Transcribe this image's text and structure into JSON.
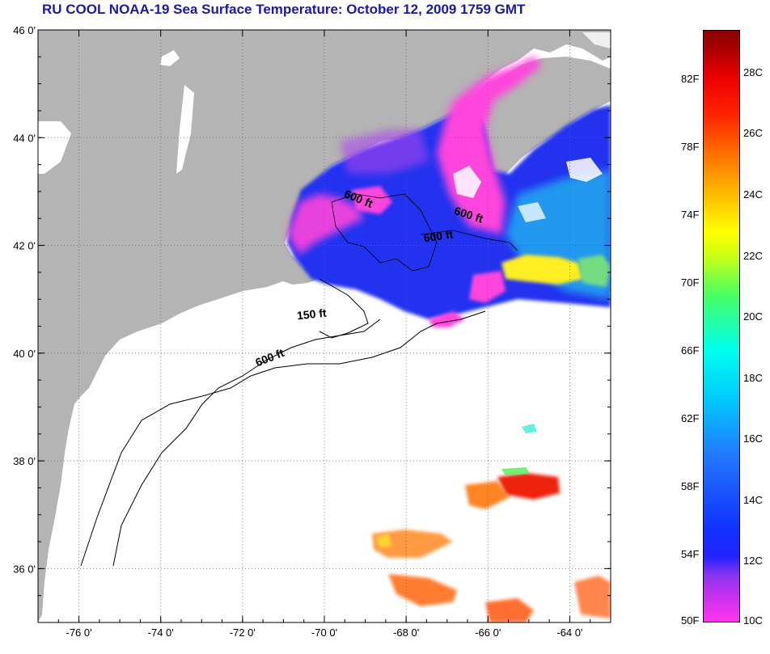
{
  "title": "RU COOL  NOAA-19  Sea Surface Temperature:  October 12, 2009 1759 GMT",
  "map": {
    "lat_ticks": [
      {
        "value": 46,
        "label": "46 0'"
      },
      {
        "value": 44,
        "label": "44 0'"
      },
      {
        "value": 42,
        "label": "42 0'"
      },
      {
        "value": 40,
        "label": "40 0'"
      },
      {
        "value": 38,
        "label": "38 0'"
      },
      {
        "value": 36,
        "label": "36 0'"
      }
    ],
    "lon_ticks": [
      {
        "value": -76,
        "label": "-76 0'"
      },
      {
        "value": -74,
        "label": "-74 0'"
      },
      {
        "value": -72,
        "label": "-72 0'"
      },
      {
        "value": -70,
        "label": "-70 0'"
      },
      {
        "value": -68,
        "label": "-68 0'"
      },
      {
        "value": -66,
        "label": "-66 0'"
      },
      {
        "value": -64,
        "label": "-64 0'"
      }
    ],
    "lon_range": [
      -77.0,
      -63.0
    ],
    "lat_range": [
      35.0,
      46.0
    ],
    "colors": {
      "land": "#b4b4b4",
      "ocean": "#ffffff",
      "grid": "#555555",
      "title": "#1a1aa6"
    },
    "contour_labels": [
      {
        "text": "600 ft",
        "lon": -69.2,
        "lat": 42.8
      },
      {
        "text": "600 ft",
        "lon": -66.5,
        "lat": 42.5
      },
      {
        "text": "600 ft",
        "lon": -67.2,
        "lat": 42.1
      },
      {
        "text": "150 ft",
        "lon": -70.3,
        "lat": 40.65
      },
      {
        "text": "600 ft",
        "lon": -71.3,
        "lat": 39.85
      }
    ]
  },
  "colorbar": {
    "fahrenheit": [
      "82F",
      "78F",
      "74F",
      "70F",
      "66F",
      "62F",
      "58F",
      "54F",
      "50F"
    ],
    "celsius": [
      "28C",
      "26C",
      "24C",
      "22C",
      "20C",
      "18C",
      "16C",
      "14C",
      "12C",
      "10C"
    ],
    "scale_min_c": 10,
    "scale_max_c": 29.4
  }
}
